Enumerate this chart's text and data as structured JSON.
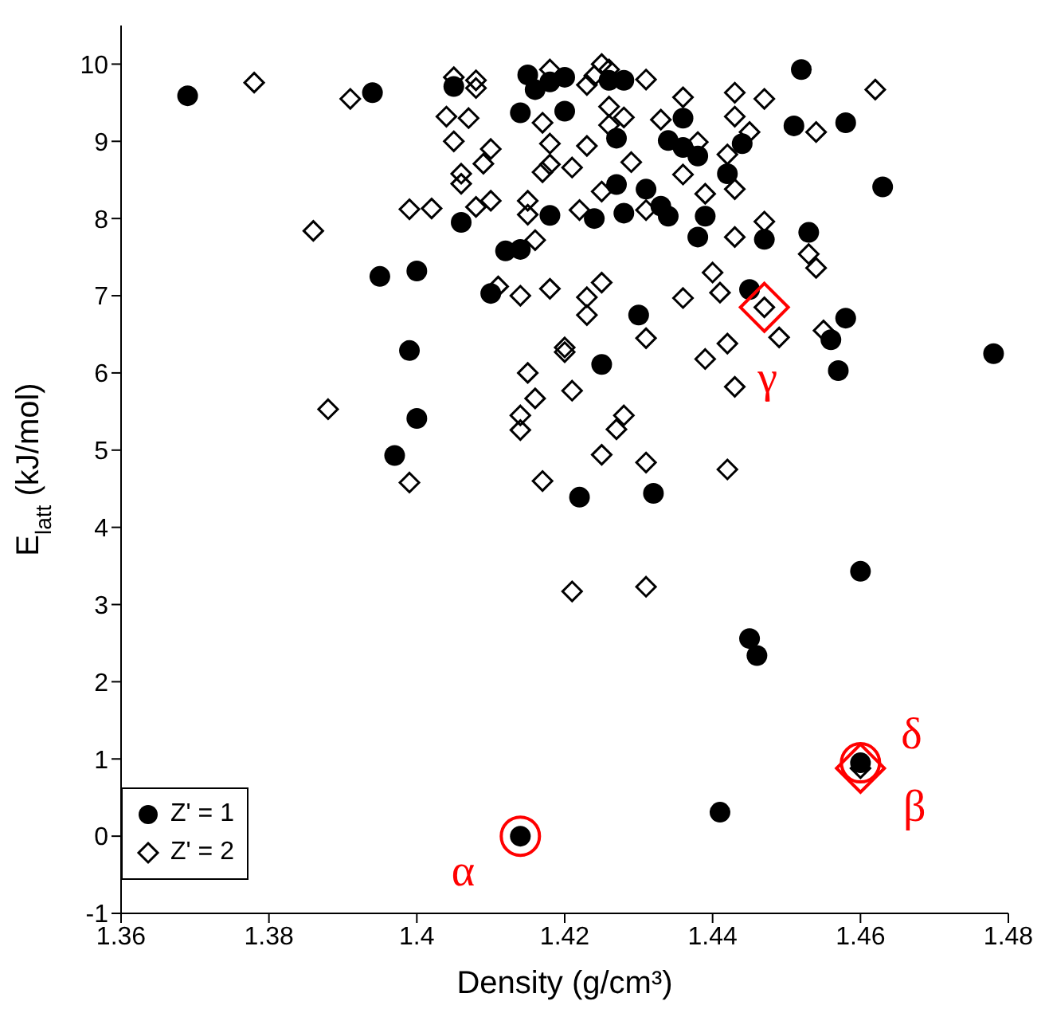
{
  "chart_data": {
    "type": "scatter",
    "xlabel": "Density (g/cm³)",
    "ylabel": "E$_{latt}$ (kJ/mol)",
    "xlim": [
      1.36,
      1.48
    ],
    "xticks": [
      1.36,
      1.38,
      {
        "value": 1.4,
        "label": "1.4"
      },
      1.42,
      1.44,
      1.46,
      1.48
    ],
    "ylim": [
      -1,
      10.5
    ],
    "yticks": [
      -1,
      0,
      1,
      2,
      3,
      4,
      5,
      6,
      7,
      8,
      9,
      10
    ],
    "grid": false,
    "legend": "bottom left",
    "series": [
      {
        "name": "Z' = 1",
        "color": "#000000",
        "marker": "circle",
        "x": [
          1.369,
          1.394,
          1.405,
          1.415,
          1.416,
          1.418,
          1.42,
          1.414,
          1.42,
          1.406,
          1.418,
          1.424,
          1.412,
          1.414,
          1.395,
          1.4,
          1.41,
          1.399,
          1.4,
          1.425,
          1.397,
          1.422,
          1.426,
          1.428,
          1.452,
          1.436,
          1.427,
          1.434,
          1.436,
          1.438,
          1.444,
          1.451,
          1.458,
          1.442,
          1.463,
          1.427,
          1.431,
          1.428,
          1.433,
          1.434,
          1.439,
          1.438,
          1.447,
          1.453,
          1.445,
          1.43,
          1.458,
          1.456,
          1.457,
          1.478,
          1.432,
          1.46,
          1.445,
          1.446,
          1.414,
          1.441,
          1.46
        ],
        "values": [
          9.59,
          9.63,
          9.71,
          9.86,
          9.67,
          9.77,
          9.83,
          9.37,
          9.39,
          7.95,
          8.04,
          8.0,
          7.58,
          7.6,
          7.25,
          7.32,
          7.03,
          6.29,
          5.41,
          6.11,
          4.93,
          4.39,
          9.79,
          9.79,
          9.93,
          9.3,
          9.04,
          9.01,
          8.92,
          8.81,
          8.97,
          9.2,
          9.24,
          8.58,
          8.41,
          8.44,
          8.38,
          8.07,
          8.16,
          8.03,
          8.03,
          7.76,
          7.73,
          7.82,
          7.08,
          6.75,
          6.71,
          6.43,
          6.03,
          6.25,
          4.44,
          3.43,
          2.56,
          2.34,
          0,
          0.31,
          0.95
        ]
      },
      {
        "name": "Z' = 2",
        "color": "#000000",
        "marker": "diamond",
        "x": [
          1.378,
          1.391,
          1.405,
          1.408,
          1.408,
          1.418,
          1.423,
          1.404,
          1.407,
          1.417,
          1.405,
          1.41,
          1.409,
          1.418,
          1.423,
          1.418,
          1.417,
          1.421,
          1.406,
          1.406,
          1.399,
          1.402,
          1.408,
          1.41,
          1.415,
          1.415,
          1.422,
          1.386,
          1.416,
          1.411,
          1.414,
          1.418,
          1.423,
          1.423,
          1.425,
          1.42,
          1.42,
          1.415,
          1.416,
          1.421,
          1.414,
          1.414,
          1.388,
          1.399,
          1.417,
          1.425,
          1.421,
          1.425,
          1.426,
          1.424,
          1.431,
          1.443,
          1.447,
          1.462,
          1.436,
          1.426,
          1.428,
          1.426,
          1.433,
          1.443,
          1.445,
          1.454,
          1.438,
          1.442,
          1.429,
          1.436,
          1.425,
          1.439,
          1.443,
          1.431,
          1.447,
          1.443,
          1.453,
          1.454,
          1.44,
          1.436,
          1.441,
          1.447,
          1.455,
          1.449,
          1.431,
          1.442,
          1.439,
          1.443,
          1.428,
          1.427,
          1.431,
          1.442,
          1.431,
          1.46
        ],
        "values": [
          9.76,
          9.55,
          9.83,
          9.79,
          9.69,
          9.93,
          9.73,
          9.32,
          9.3,
          9.24,
          9.0,
          8.9,
          8.71,
          8.97,
          8.94,
          8.7,
          8.6,
          8.66,
          8.58,
          8.45,
          8.12,
          8.13,
          8.15,
          8.23,
          8.23,
          8.05,
          8.11,
          7.84,
          7.72,
          7.12,
          7.0,
          7.09,
          6.98,
          6.75,
          7.17,
          6.33,
          6.27,
          6.0,
          5.67,
          5.77,
          5.45,
          5.26,
          5.53,
          4.58,
          4.6,
          4.94,
          3.17,
          10.0,
          9.93,
          9.85,
          9.8,
          9.63,
          9.55,
          9.67,
          9.57,
          9.45,
          9.31,
          9.21,
          9.28,
          9.32,
          9.12,
          9.12,
          8.99,
          8.83,
          8.73,
          8.57,
          8.35,
          8.32,
          8.38,
          8.11,
          7.96,
          7.76,
          7.54,
          7.36,
          7.3,
          6.97,
          7.04,
          6.85,
          6.55,
          6.46,
          6.45,
          6.38,
          6.18,
          5.82,
          5.45,
          5.27,
          4.84,
          4.75,
          3.23,
          0.88
        ]
      }
    ],
    "annotations": [
      {
        "text": "α",
        "x": 1.414,
        "y": 0
      },
      {
        "text": "β",
        "x": 1.46,
        "y": 0.88
      },
      {
        "text": "γ",
        "x": 1.447,
        "y": 6.85
      },
      {
        "text": "δ",
        "x": 1.46,
        "y": 0.95
      }
    ]
  }
}
